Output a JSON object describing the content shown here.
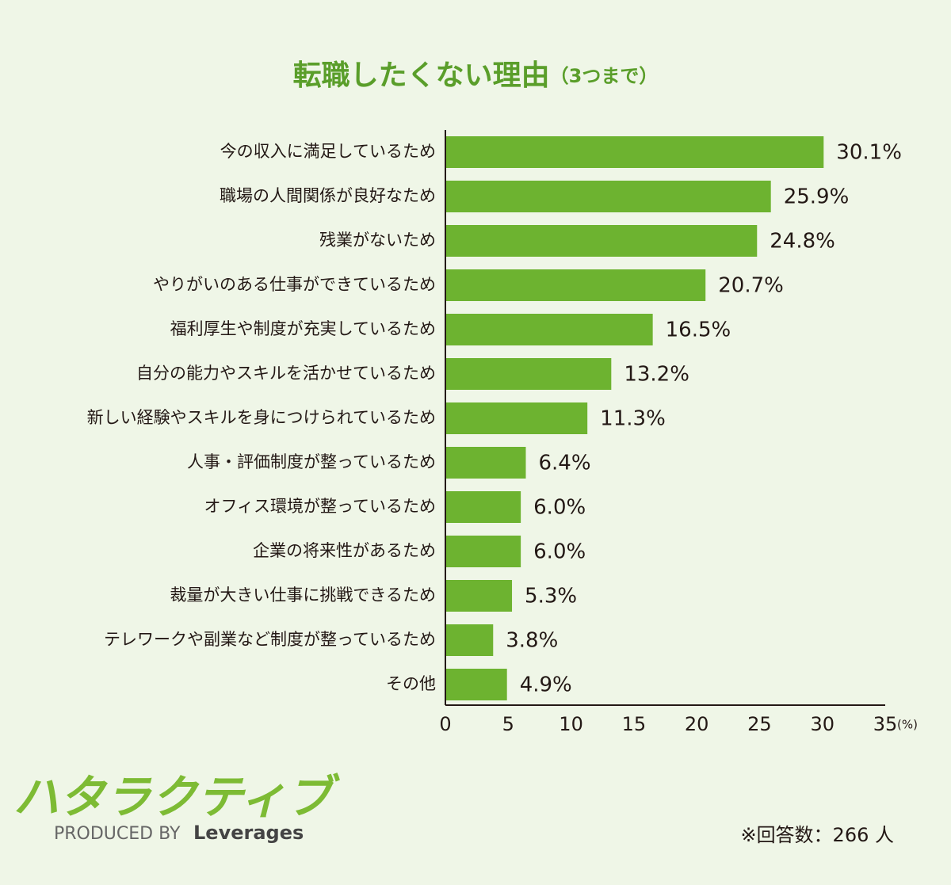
{
  "chart_data": {
    "type": "bar",
    "orientation": "horizontal",
    "title": "転職したくない理由",
    "subtitle": "（3つまで）",
    "categories": [
      "今の収入に満足しているため",
      "職場の人間関係が良好なため",
      "残業がないため",
      "やりがいのある仕事ができているため",
      "福利厚生や制度が充実しているため",
      "自分の能力やスキルを活かせているため",
      "新しい経験やスキルを身につけられているため",
      "人事・評価制度が整っているため",
      "オフィス環境が整っているため",
      "企業の将来性があるため",
      "裁量が大きい仕事に挑戦できるため",
      "テレワークや副業など制度が整っているため",
      "その他"
    ],
    "values": [
      30.1,
      25.9,
      24.8,
      20.7,
      16.5,
      13.2,
      11.3,
      6.4,
      6.0,
      6.0,
      5.3,
      3.8,
      4.9
    ],
    "value_labels": [
      "30.1%",
      "25.9%",
      "24.8%",
      "20.7%",
      "16.5%",
      "13.2%",
      "11.3%",
      "6.4%",
      "6.0%",
      "6.0%",
      "5.3%",
      "3.8%",
      "4.9%"
    ],
    "color": "#6db330",
    "xlim": [
      0,
      35
    ],
    "xticks": [
      0,
      5,
      10,
      15,
      20,
      25,
      30,
      35
    ],
    "x_label": "(%)",
    "grid": false
  },
  "logo": "ハタラクティブ",
  "credit": {
    "prefix": "PRODUCED BY",
    "brand": "Leverages"
  },
  "note": "※回答数：266 人"
}
